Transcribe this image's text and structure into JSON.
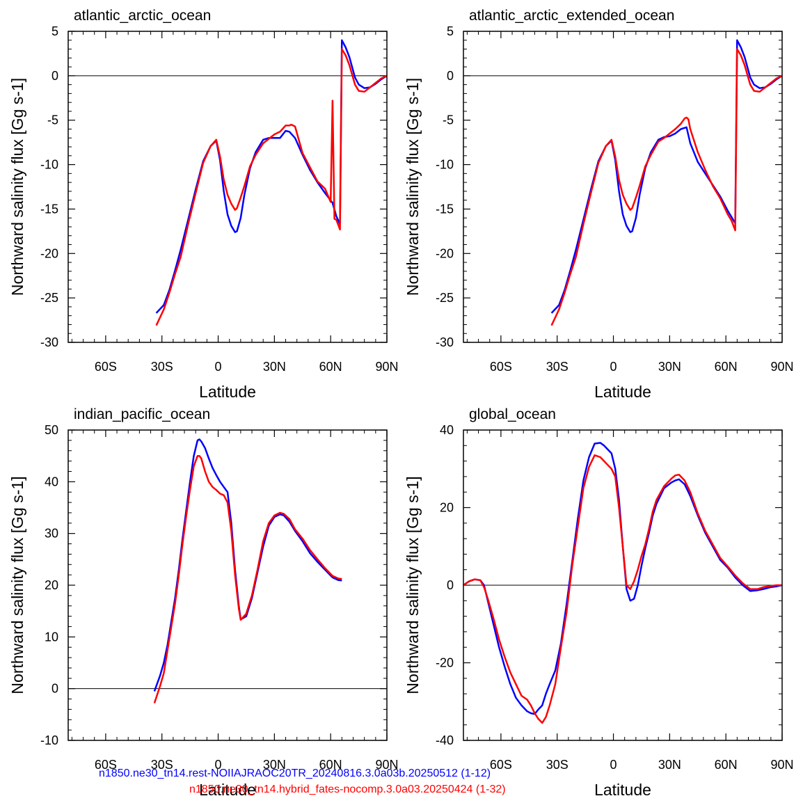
{
  "figure": {
    "ylabel": "Northward salinity flux [Gg s-1]",
    "xlabel": "Latitude",
    "series_colors": [
      "#0000ff",
      "#ff0000"
    ],
    "legend": [
      {
        "text": "n1850.ne30_tn14.rest-NOIIAJRAOC20TR_20240816.3.0a03b.20250512 (1-12)",
        "color": "#0000ff"
      },
      {
        "text": "n1850.ne30_tn14.hybrid_fates-nocomp.3.0a03.20250424 (1-32)",
        "color": "#ff0000"
      }
    ]
  },
  "chart_data": [
    {
      "type": "line",
      "title": "atlantic_arctic_ocean",
      "xlabel": "Latitude",
      "ylabel": "Northward salinity flux [Gg s-1]",
      "xlim": [
        -80,
        90
      ],
      "ylim": [
        -30,
        5
      ],
      "xticks": [
        -60,
        -30,
        0,
        30,
        60,
        90
      ],
      "xticklabels": [
        "60S",
        "30S",
        "0",
        "30N",
        "60N",
        "90N"
      ],
      "yticks": [
        -30,
        -25,
        -20,
        -15,
        -10,
        -5,
        0,
        5
      ],
      "zero_line": true,
      "series": [
        {
          "color": "#0000ff",
          "x": [
            -33,
            -29,
            -26,
            -23,
            -20,
            -16,
            -12,
            -8,
            -4,
            -1,
            1,
            3,
            5,
            7,
            9,
            10,
            12,
            14,
            17,
            20,
            24,
            27,
            30,
            33,
            36,
            38,
            41,
            45,
            49,
            53,
            57,
            61,
            63,
            65,
            66,
            68,
            70,
            73,
            75,
            78,
            81,
            84,
            87,
            90
          ],
          "y": [
            -26.7,
            -25.8,
            -24.1,
            -21.9,
            -19.6,
            -16.2,
            -12.8,
            -9.6,
            -7.9,
            -7.3,
            -9.5,
            -13,
            -15.6,
            -16.9,
            -17.6,
            -17.5,
            -16,
            -13.4,
            -10.4,
            -8.6,
            -7.2,
            -7,
            -7,
            -7,
            -6.2,
            -6.3,
            -7,
            -8.9,
            -10.6,
            -12,
            -13.2,
            -14.3,
            -15.8,
            -16.7,
            4,
            3.2,
            2.1,
            -0.2,
            -1,
            -1.4,
            -1.3,
            -0.9,
            -0.4,
            0
          ]
        },
        {
          "color": "#ff0000",
          "x": [
            -33,
            -29,
            -26,
            -23,
            -20,
            -16,
            -12,
            -8,
            -4,
            -1,
            1,
            3,
            5,
            7,
            9,
            10,
            12,
            14,
            17,
            20,
            24,
            27,
            30,
            33,
            36,
            38,
            39,
            41,
            45,
            49,
            53,
            57,
            60,
            61,
            62,
            63,
            65,
            66,
            68,
            70,
            73,
            75,
            78,
            81,
            84,
            87,
            90
          ],
          "y": [
            -28.1,
            -26.3,
            -24.4,
            -22.3,
            -20.4,
            -16.7,
            -13.2,
            -9.8,
            -7.9,
            -7.2,
            -9.1,
            -11.7,
            -13.4,
            -14.4,
            -15.1,
            -14.9,
            -13.7,
            -12.4,
            -10.2,
            -8.9,
            -7.6,
            -7.1,
            -6.6,
            -6.3,
            -5.6,
            -5.6,
            -5.5,
            -5.7,
            -8.7,
            -10.3,
            -11.9,
            -12.7,
            -14.2,
            -2.8,
            -16.1,
            -16.2,
            -17.3,
            3,
            2.3,
            1.2,
            -1,
            -1.7,
            -1.8,
            -1.3,
            -0.8,
            -0.3,
            0
          ]
        }
      ]
    },
    {
      "type": "line",
      "title": "atlantic_arctic_extended_ocean",
      "xlabel": "Latitude",
      "ylabel": "Northward salinity flux [Gg s-1]",
      "xlim": [
        -80,
        90
      ],
      "ylim": [
        -30,
        5
      ],
      "xticks": [
        -60,
        -30,
        0,
        30,
        60,
        90
      ],
      "xticklabels": [
        "60S",
        "30S",
        "0",
        "30N",
        "60N",
        "90N"
      ],
      "yticks": [
        -30,
        -25,
        -20,
        -15,
        -10,
        -5,
        0,
        5
      ],
      "zero_line": true,
      "series": [
        {
          "color": "#0000ff",
          "x": [
            -33,
            -29,
            -26,
            -23,
            -20,
            -16,
            -12,
            -8,
            -4,
            -1,
            1,
            3,
            5,
            7,
            9,
            10,
            12,
            14,
            17,
            20,
            24,
            27,
            30,
            33,
            36,
            39,
            41,
            45,
            49,
            53,
            57,
            61,
            63,
            65,
            66,
            68,
            70,
            73,
            75,
            78,
            81,
            84,
            87,
            90
          ],
          "y": [
            -26.7,
            -25.8,
            -24.1,
            -21.9,
            -19.6,
            -16.2,
            -12.8,
            -9.6,
            -7.9,
            -7.3,
            -9.5,
            -13,
            -15.6,
            -16.9,
            -17.6,
            -17.5,
            -16,
            -13.4,
            -10.4,
            -8.6,
            -7.2,
            -6.9,
            -6.8,
            -6.5,
            -6,
            -5.8,
            -7.6,
            -9.7,
            -11,
            -12.3,
            -13.6,
            -15.2,
            -15.9,
            -16.6,
            4,
            3.2,
            2.1,
            -0.2,
            -1,
            -1.4,
            -1.3,
            -0.9,
            -0.4,
            0
          ]
        },
        {
          "color": "#ff0000",
          "x": [
            -33,
            -29,
            -26,
            -23,
            -20,
            -16,
            -12,
            -8,
            -4,
            -1,
            1,
            3,
            5,
            7,
            9,
            10,
            12,
            14,
            17,
            20,
            24,
            27,
            30,
            33,
            36,
            38,
            39,
            40,
            41,
            45,
            49,
            53,
            57,
            61,
            63,
            65,
            66,
            68,
            70,
            73,
            75,
            78,
            81,
            84,
            87,
            90
          ],
          "y": [
            -28.1,
            -26.3,
            -24.4,
            -22.3,
            -20.4,
            -16.7,
            -13.2,
            -9.8,
            -7.9,
            -7.2,
            -9.1,
            -11.7,
            -13.4,
            -14.4,
            -15.1,
            -14.9,
            -13.7,
            -12.4,
            -10.2,
            -8.9,
            -7.4,
            -7,
            -6.5,
            -6,
            -5.4,
            -4.8,
            -4.7,
            -4.9,
            -6,
            -8.6,
            -10.6,
            -12.4,
            -13.8,
            -15.6,
            -16.3,
            -17.4,
            3,
            2.3,
            1.2,
            -1,
            -1.7,
            -1.8,
            -1.3,
            -0.8,
            -0.3,
            0
          ]
        }
      ]
    },
    {
      "type": "line",
      "title": "indian_pacific_ocean",
      "xlabel": "Latitude",
      "ylabel": "Northward salinity flux [Gg s-1]",
      "xlim": [
        -80,
        90
      ],
      "ylim": [
        -10,
        50
      ],
      "xticks": [
        -60,
        -30,
        0,
        30,
        60,
        90
      ],
      "xticklabels": [
        "60S",
        "30S",
        "0",
        "30N",
        "60N",
        "90N"
      ],
      "yticks": [
        -10,
        0,
        10,
        20,
        30,
        40,
        50
      ],
      "zero_line": true,
      "series": [
        {
          "color": "#0000ff",
          "x": [
            -34,
            -31,
            -29,
            -27,
            -25,
            -23,
            -21,
            -19,
            -17,
            -15,
            -13,
            -11,
            -10,
            -9,
            -7,
            -5,
            -3,
            -1,
            1,
            3,
            5,
            7,
            9,
            11,
            12,
            15,
            18,
            21,
            24,
            27,
            30,
            33,
            35,
            38,
            41,
            45,
            49,
            53,
            57,
            61,
            64,
            66
          ],
          "y": [
            -0.5,
            2.5,
            5,
            8.5,
            13,
            17.5,
            23,
            29,
            34.5,
            40,
            45,
            48,
            48.2,
            47.8,
            46.5,
            44.5,
            42.7,
            41.3,
            40,
            39,
            38,
            32,
            23,
            16,
            13.4,
            14,
            17.5,
            22.5,
            27.5,
            31.5,
            33.2,
            33.7,
            33.5,
            32.3,
            30.5,
            28.5,
            26.2,
            24.5,
            23,
            21.5,
            21,
            20.9
          ]
        },
        {
          "color": "#ff0000",
          "x": [
            -34,
            -31,
            -29,
            -27,
            -25,
            -23,
            -21,
            -19,
            -17,
            -15,
            -13,
            -11,
            -10,
            -9,
            -7,
            -5,
            -3,
            -1,
            1,
            3,
            5,
            7,
            9,
            11,
            12,
            15,
            18,
            21,
            24,
            27,
            30,
            33,
            35,
            38,
            41,
            45,
            49,
            53,
            57,
            61,
            64,
            66
          ],
          "y": [
            -2.8,
            0.5,
            3,
            7.5,
            12,
            16.5,
            22,
            28,
            33.5,
            38.5,
            43,
            45,
            45,
            44.5,
            42,
            40,
            39,
            38.4,
            37.7,
            37.4,
            36,
            30.5,
            22,
            15.5,
            13.3,
            14.5,
            18,
            23,
            28.5,
            32,
            33.5,
            34,
            33.8,
            32.8,
            30.8,
            29,
            26.8,
            25,
            23.3,
            21.8,
            21.3,
            21.2
          ]
        }
      ]
    },
    {
      "type": "line",
      "title": "global_ocean",
      "xlabel": "Latitude",
      "ylabel": "Northward salinity flux [Gg s-1]",
      "xlim": [
        -80,
        90
      ],
      "ylim": [
        -40,
        40
      ],
      "xticks": [
        -60,
        -30,
        0,
        30,
        60,
        90
      ],
      "xticklabels": [
        "60S",
        "30S",
        "0",
        "30N",
        "60N",
        "90N"
      ],
      "yticks": [
        -40,
        -20,
        0,
        20,
        40
      ],
      "zero_line": true,
      "series": [
        {
          "color": "#0000ff",
          "x": [
            -80,
            -77,
            -74,
            -71,
            -69,
            -67,
            -64,
            -61,
            -58,
            -55,
            -52,
            -49,
            -46,
            -44,
            -42,
            -40,
            -38,
            -36,
            -34,
            -31,
            -28,
            -25,
            -22,
            -19,
            -16,
            -13,
            -10,
            -7,
            -5,
            -3,
            -1,
            1,
            3,
            5,
            7,
            9,
            11,
            13,
            15,
            17,
            19,
            21,
            23,
            27,
            31,
            33,
            35,
            38,
            41,
            45,
            49,
            53,
            57,
            61,
            65,
            69,
            73,
            77,
            80,
            84,
            87,
            90
          ],
          "y": [
            0,
            1,
            1.5,
            1.3,
            0,
            -4,
            -10,
            -16,
            -21,
            -25.5,
            -29,
            -31,
            -32.5,
            -33,
            -33.2,
            -32,
            -31,
            -28,
            -25.5,
            -22,
            -15,
            -5,
            6,
            17,
            27,
            33,
            36.5,
            36.7,
            36,
            35,
            34,
            30,
            22,
            10,
            -1,
            -4,
            -3.5,
            0,
            5,
            9.5,
            13.5,
            18,
            21,
            25,
            26.5,
            27,
            27.3,
            26,
            23,
            18,
            13.5,
            10,
            6.5,
            4.5,
            2,
            0,
            -1.5,
            -1.3,
            -1,
            -0.5,
            -0.3,
            0
          ]
        },
        {
          "color": "#ff0000",
          "x": [
            -80,
            -77,
            -74,
            -71,
            -69,
            -67,
            -64,
            -61,
            -58,
            -55,
            -52,
            -49,
            -46,
            -44,
            -42,
            -40,
            -38,
            -36,
            -34,
            -31,
            -28,
            -25,
            -22,
            -19,
            -16,
            -13,
            -10,
            -7,
            -5,
            -3,
            -1,
            1,
            3,
            5,
            7,
            9,
            11,
            13,
            15,
            17,
            19,
            21,
            23,
            27,
            31,
            33,
            35,
            38,
            41,
            45,
            49,
            53,
            57,
            61,
            65,
            69,
            73,
            77,
            80,
            84,
            87,
            90
          ],
          "y": [
            0,
            1,
            1.5,
            1.3,
            -0.5,
            -3.5,
            -8.5,
            -14,
            -18.5,
            -22.5,
            -25.5,
            -28.5,
            -29.5,
            -31,
            -33,
            -34.5,
            -35.5,
            -34,
            -31,
            -25.5,
            -16,
            -7,
            5,
            15,
            25,
            30.5,
            33.5,
            33,
            32,
            31,
            30,
            28,
            20,
            10,
            0,
            -1,
            1,
            4,
            7.5,
            10.5,
            14.5,
            19,
            22,
            25.5,
            27.5,
            28.3,
            28.5,
            27,
            24,
            18.5,
            14,
            10.5,
            7,
            4.8,
            2.5,
            0.5,
            -1,
            -1,
            -0.5,
            -0.2,
            0,
            0
          ]
        }
      ]
    }
  ]
}
